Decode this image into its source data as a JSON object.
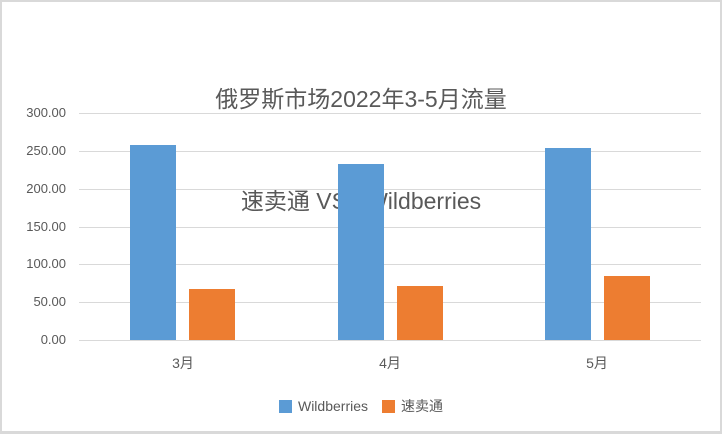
{
  "title": {
    "line1": "俄罗斯市场2022年3-5月流量",
    "line2": "速卖通 VS   Wildberries"
  },
  "chart_data": {
    "type": "bar",
    "title": "俄罗斯市场2022年3-5月流量 速卖通 VS Wildberries",
    "categories": [
      "3月",
      "4月",
      "5月"
    ],
    "series": [
      {
        "name": "Wildberries",
        "color": "#5B9BD5",
        "values": [
          258,
          233,
          254
        ]
      },
      {
        "name": "速卖通",
        "color": "#ED7D31",
        "values": [
          67,
          71,
          85
        ]
      }
    ],
    "xlabel": "",
    "ylabel": "",
    "ylim": [
      0,
      300
    ],
    "ytick_step": 50,
    "ytick_decimals": 2,
    "ytick_labels": [
      "0.00",
      "50.00",
      "100.00",
      "150.00",
      "200.00",
      "250.00",
      "300.00"
    ],
    "grid": true,
    "legend_position": "bottom"
  },
  "colors": {
    "background": "#FFFFFF",
    "border": "#D9D9D9",
    "gridline": "#D9D9D9",
    "text": "#595959",
    "series_blue": "#5B9BD5",
    "series_orange": "#ED7D31"
  }
}
